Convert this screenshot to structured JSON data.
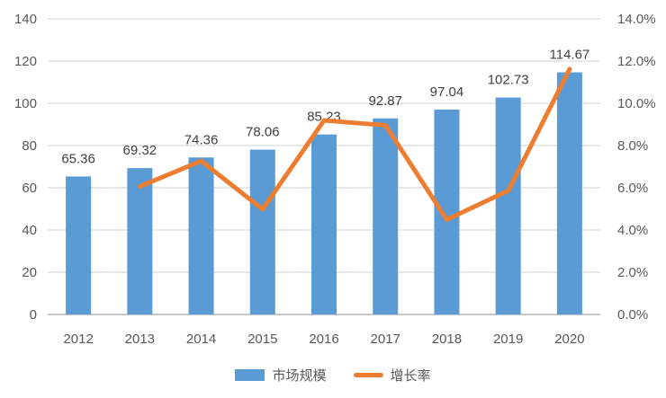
{
  "chart_data": {
    "type": "combo",
    "title": "",
    "categories": [
      "2012",
      "2013",
      "2014",
      "2015",
      "2016",
      "2017",
      "2018",
      "2019",
      "2020"
    ],
    "series": [
      {
        "name": "市场规模",
        "type": "bar",
        "axis": "left",
        "color": "#5B9BD5",
        "values": [
          65.36,
          69.32,
          74.36,
          78.06,
          85.23,
          92.87,
          97.04,
          102.73,
          114.67
        ]
      },
      {
        "name": "增长率",
        "type": "line",
        "axis": "right",
        "color": "#ED7D31",
        "values_percent": [
          null,
          6.06,
          7.27,
          4.98,
          9.19,
          8.96,
          4.49,
          5.86,
          11.62
        ]
      }
    ],
    "bar_value_labels": [
      "65.36",
      "69.32",
      "74.36",
      "78.06",
      "85.23",
      "92.87",
      "97.04",
      "102.73",
      "114.67"
    ],
    "left_axis": {
      "min": 0,
      "max": 140,
      "step": 20,
      "tick_labels": [
        "0",
        "20",
        "40",
        "60",
        "80",
        "100",
        "120",
        "140"
      ]
    },
    "right_axis": {
      "min": 0,
      "max": 14,
      "step": 2,
      "tick_labels": [
        "0.0%",
        "2.0%",
        "4.0%",
        "6.0%",
        "8.0%",
        "10.0%",
        "12.0%",
        "14.0%"
      ]
    },
    "legend": {
      "position": "bottom",
      "items": [
        "市场规模",
        "增长率"
      ]
    },
    "grid": true,
    "colors": {
      "bar": "#5B9BD5",
      "line": "#ED7D31",
      "grid": "#D9D9D9",
      "axis_line": "#C8C8C8",
      "tick_text": "#595959",
      "label_text": "#404040",
      "background": "#FFFFFF"
    }
  }
}
